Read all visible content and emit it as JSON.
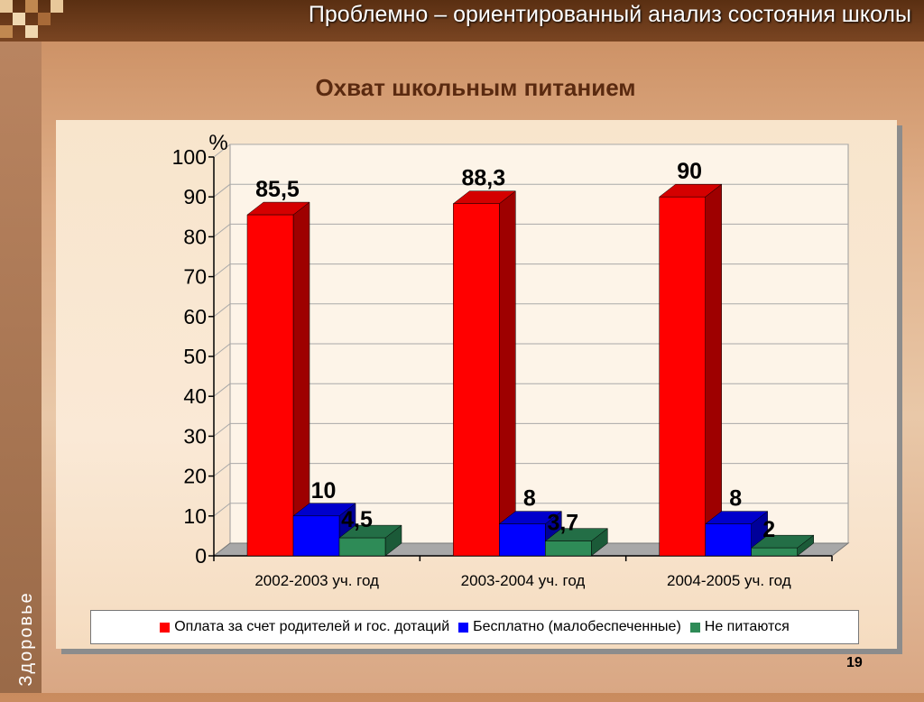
{
  "header": {
    "title": "Проблемно – ориентированный анализ состояния школы"
  },
  "sidebar": {
    "label": "Здоровье"
  },
  "page_number": "19",
  "colors": {
    "red": "#ff0000",
    "red_side": "#9e0000",
    "red_top": "#d40000",
    "blue": "#0000ff",
    "blue_side": "#000099",
    "blue_top": "#0000cc",
    "green": "#2e8b57",
    "green_side": "#1b5a38",
    "green_top": "#236e46"
  },
  "chart_data": {
    "type": "bar",
    "title": "Охват школьным питанием",
    "ylabel": "%",
    "xlabel": "",
    "ylim": [
      0,
      100
    ],
    "yticks": [
      0,
      10,
      20,
      30,
      40,
      50,
      60,
      70,
      80,
      90,
      100
    ],
    "grid": true,
    "legend_position": "bottom",
    "categories": [
      "2002-2003 уч. год",
      "2003-2004 уч. год",
      "2004-2005 уч. год"
    ],
    "series": [
      {
        "name": "Оплата за счет родителей и гос. дотаций",
        "values": [
          85.5,
          88.3,
          90
        ],
        "labels": [
          "85,5",
          "88,3",
          "90"
        ]
      },
      {
        "name": "Бесплатно (малобеспеченные)",
        "values": [
          10,
          8,
          8
        ],
        "labels": [
          "10",
          "8",
          "8"
        ]
      },
      {
        "name": "Не питаются",
        "values": [
          4.5,
          3.7,
          2
        ],
        "labels": [
          "4,5",
          "3,7",
          "2"
        ]
      }
    ]
  }
}
